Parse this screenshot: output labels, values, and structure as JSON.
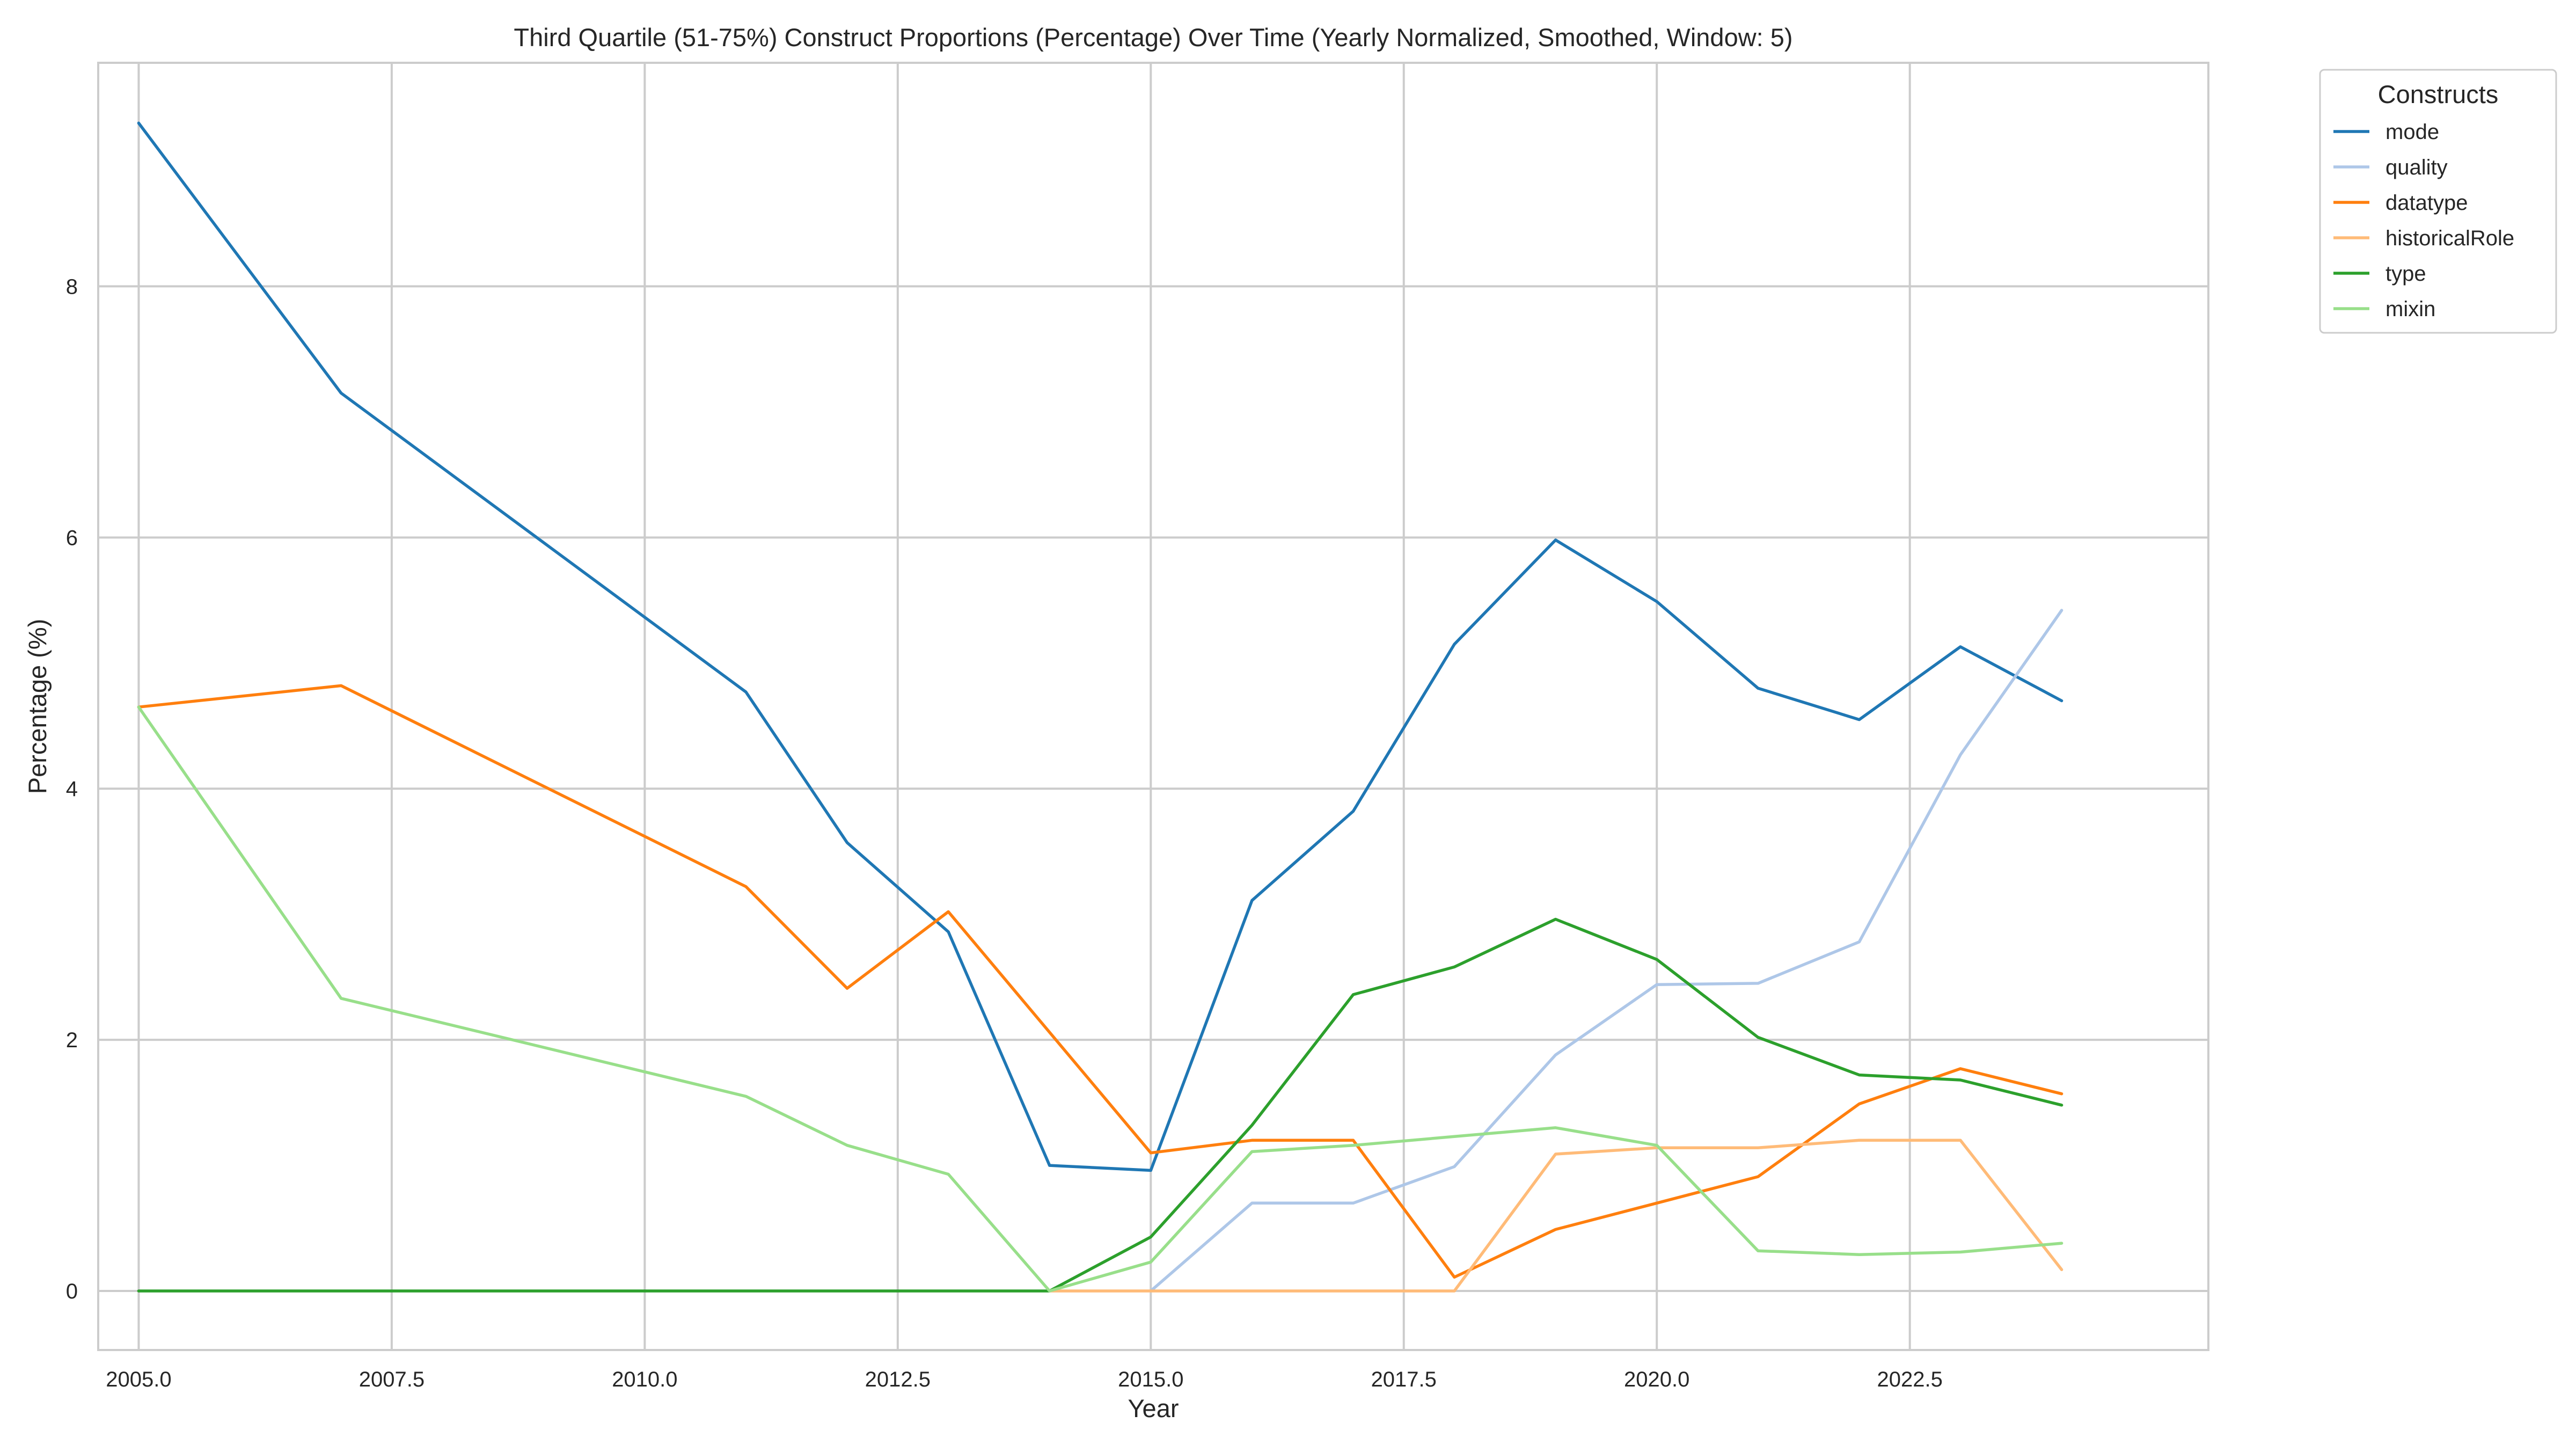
{
  "chart_data": {
    "type": "line",
    "title": "Third Quartile (51-75%) Construct Proportions (Percentage) Over Time (Yearly Normalized, Smoothed, Window: 5)",
    "xlabel": "Year",
    "ylabel": "Percentage (%)",
    "xlim": [
      2004.6,
      2025.45
    ],
    "ylim": [
      -0.47,
      9.78
    ],
    "xticks": [
      2005.0,
      2007.5,
      2010.0,
      2012.5,
      2015.0,
      2017.5,
      2020.0,
      2022.5
    ],
    "xtick_labels": [
      "2005.0",
      "2007.5",
      "2010.0",
      "2012.5",
      "2015.0",
      "2017.5",
      "2020.0",
      "2022.5"
    ],
    "yticks": [
      0,
      2,
      4,
      6,
      8
    ],
    "ytick_labels": [
      "0",
      "2",
      "4",
      "6",
      "8"
    ],
    "grid": true,
    "legend": {
      "title": "Constructs",
      "placement": "outside-right-top"
    },
    "series": [
      {
        "name": "mode",
        "color": "#1f77b4",
        "points": [
          [
            2005,
            9.3
          ],
          [
            2007,
            7.15
          ],
          [
            2011,
            4.77
          ],
          [
            2012,
            3.57
          ],
          [
            2013,
            2.86
          ],
          [
            2014,
            1.0
          ],
          [
            2015,
            0.96
          ],
          [
            2016,
            3.11
          ],
          [
            2017,
            3.82
          ],
          [
            2018,
            5.15
          ],
          [
            2019,
            5.98
          ],
          [
            2020,
            5.49
          ],
          [
            2021,
            4.8
          ],
          [
            2022,
            4.55
          ],
          [
            2023,
            5.13
          ],
          [
            2024,
            4.7
          ]
        ]
      },
      {
        "name": "quality",
        "color": "#aec7e8",
        "points": [
          [
            2015,
            0.0
          ],
          [
            2016,
            0.7
          ],
          [
            2017,
            0.7
          ],
          [
            2018,
            0.99
          ],
          [
            2019,
            1.88
          ],
          [
            2020,
            2.44
          ],
          [
            2021,
            2.45
          ],
          [
            2022,
            2.78
          ],
          [
            2023,
            4.27
          ],
          [
            2024,
            5.42
          ]
        ]
      },
      {
        "name": "datatype",
        "color": "#ff7f0e",
        "points": [
          [
            2005,
            4.65
          ],
          [
            2007,
            4.82
          ],
          [
            2011,
            3.22
          ],
          [
            2012,
            2.41
          ],
          [
            2013,
            3.02
          ],
          [
            2015,
            1.1
          ],
          [
            2016,
            1.2
          ],
          [
            2017,
            1.2
          ],
          [
            2018,
            0.11
          ],
          [
            2019,
            0.49
          ],
          [
            2020,
            0.7
          ],
          [
            2021,
            0.91
          ],
          [
            2022,
            1.49
          ],
          [
            2023,
            1.77
          ],
          [
            2024,
            1.57
          ]
        ]
      },
      {
        "name": "historicalRole",
        "color": "#ffbb78",
        "points": [
          [
            2014,
            0.0
          ],
          [
            2015,
            0.0
          ],
          [
            2016,
            0.0
          ],
          [
            2017,
            0.0
          ],
          [
            2018,
            0.0
          ],
          [
            2019,
            1.09
          ],
          [
            2020,
            1.14
          ],
          [
            2021,
            1.14
          ],
          [
            2022,
            1.2
          ],
          [
            2023,
            1.2
          ],
          [
            2024,
            0.17
          ]
        ]
      },
      {
        "name": "type",
        "color": "#2ca02c",
        "points": [
          [
            2005,
            0.0
          ],
          [
            2007,
            0.0
          ],
          [
            2011,
            0.0
          ],
          [
            2012,
            0.0
          ],
          [
            2013,
            0.0
          ],
          [
            2014,
            0.0
          ],
          [
            2015,
            0.43
          ],
          [
            2016,
            1.32
          ],
          [
            2017,
            2.36
          ],
          [
            2018,
            2.58
          ],
          [
            2019,
            2.96
          ],
          [
            2020,
            2.64
          ],
          [
            2021,
            2.02
          ],
          [
            2022,
            1.72
          ],
          [
            2023,
            1.68
          ],
          [
            2024,
            1.48
          ]
        ]
      },
      {
        "name": "mixin",
        "color": "#98df8a",
        "points": [
          [
            2005,
            4.65
          ],
          [
            2007,
            2.33
          ],
          [
            2011,
            1.55
          ],
          [
            2012,
            1.16
          ],
          [
            2013,
            0.93
          ],
          [
            2014,
            0.0
          ],
          [
            2015,
            0.23
          ],
          [
            2016,
            1.11
          ],
          [
            2017,
            1.16
          ],
          [
            2018,
            1.23
          ],
          [
            2019,
            1.3
          ],
          [
            2020,
            1.16
          ],
          [
            2021,
            0.32
          ],
          [
            2022,
            0.29
          ],
          [
            2023,
            0.31
          ],
          [
            2024,
            0.38
          ]
        ]
      }
    ]
  }
}
